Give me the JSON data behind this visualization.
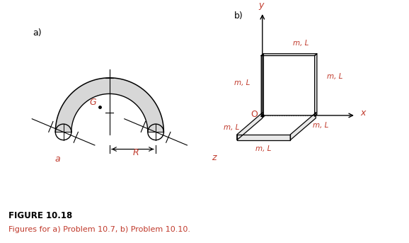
{
  "fig_width": 5.78,
  "fig_height": 3.43,
  "dpi": 100,
  "bg_color": "#ffffff",
  "label_a": "a)",
  "label_b": "b)",
  "figure_title": "FIGURE 10.18",
  "figure_caption": "Figures for a) Problem 10.7, b) Problem 10.10.",
  "label_G": "G",
  "label_R": "R",
  "label_a_small": "a",
  "label_x": "x",
  "label_y": "y",
  "label_z": "z",
  "label_O": "O",
  "label_mL": "m, L",
  "line_color": "#000000",
  "red_color": "#c0392b",
  "gray_fill": "#d0d0d0",
  "dark_gray": "#888888",
  "caption_color": "#c0392b"
}
